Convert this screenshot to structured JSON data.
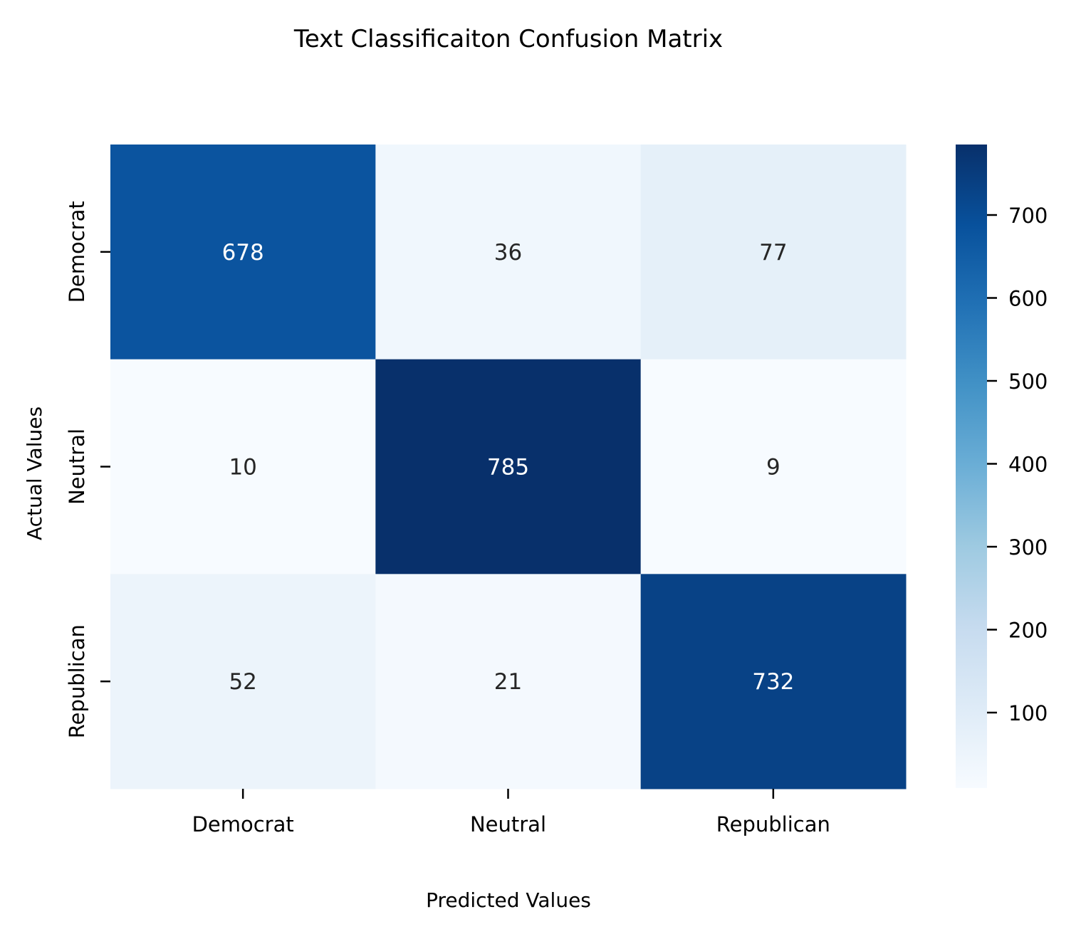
{
  "chart_data": {
    "type": "heatmap",
    "title": "Text Classificaiton Confusion Matrix",
    "xlabel": "Predicted Values",
    "ylabel": "Actual Values",
    "x_categories": [
      "Democrat",
      "Neutral",
      "Republican"
    ],
    "y_categories": [
      "Democrat",
      "Neutral",
      "Republican"
    ],
    "values": [
      [
        678,
        36,
        77
      ],
      [
        10,
        785,
        9
      ],
      [
        52,
        21,
        732
      ]
    ],
    "colormap": "Blues",
    "vmin": 9,
    "vmax": 785,
    "colorbar_ticks": [
      100,
      200,
      300,
      400,
      500,
      600,
      700
    ],
    "colors": {
      "stops": [
        "#f7fbff",
        "#deebf7",
        "#c6dbef",
        "#9ecae1",
        "#6baed6",
        "#4292c6",
        "#2171b5",
        "#08519c",
        "#08306b"
      ],
      "text_light": "#ffffff",
      "text_dark": "#262626"
    }
  }
}
